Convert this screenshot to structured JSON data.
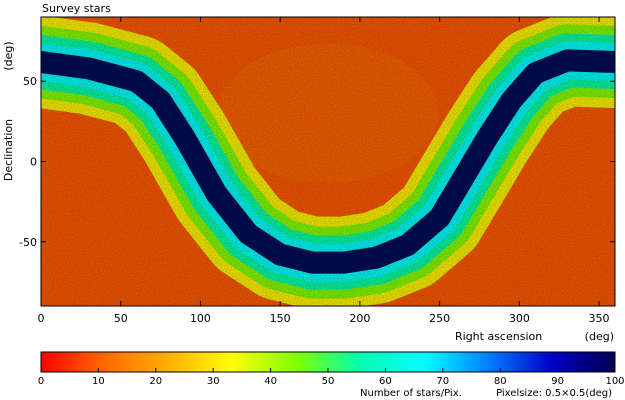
{
  "chart_data": [
    {
      "type": "heatmap",
      "title": "Survey stars",
      "xlabel": "Right ascension",
      "xunit": "(deg)",
      "ylabel": "Declination",
      "yunit": "(deg)",
      "xlim": [
        0,
        360
      ],
      "ylim": [
        -90,
        90
      ],
      "xticks": [
        0,
        50,
        100,
        150,
        200,
        250,
        300,
        350
      ],
      "yticks": [
        -50,
        0,
        50
      ],
      "description_values": {
        "background_level_stars_per_pix": 10,
        "galactic_plane_level_stars_per_pix": 95
      },
      "galactic_plane_path": {
        "x": [
          0,
          30,
          60,
          75,
          90,
          110,
          130,
          150,
          170,
          190,
          210,
          230,
          250,
          265,
          280,
          295,
          310,
          330,
          360
        ],
        "y": [
          62,
          58,
          50,
          38,
          15,
          -20,
          -45,
          -58,
          -63,
          -63,
          -60,
          -52,
          -35,
          -10,
          15,
          38,
          55,
          63,
          62
        ]
      }
    },
    {
      "type": "colorbar",
      "xlabel": "Number of stars/Pix.",
      "note": "Pixelsize: 0.5×0.5(deg)",
      "xlim": [
        0,
        100
      ],
      "xticks": [
        0,
        10,
        20,
        30,
        40,
        50,
        60,
        70,
        80,
        90,
        100
      ],
      "colormap": [
        "#ff0000",
        "#ff6a00",
        "#ffb000",
        "#ffff00",
        "#7fff00",
        "#00ffb0",
        "#00ffff",
        "#0080ff",
        "#0000c8",
        "#000050"
      ]
    }
  ],
  "labels": {
    "title": "Survey stars",
    "y_unit": "(deg)",
    "y_title": "Declination",
    "x_title": "Right ascension",
    "x_unit": "(deg)",
    "cb_title": "Number of stars/Pix.",
    "cb_note": "Pixelsize: 0.5×0.5(deg)"
  }
}
